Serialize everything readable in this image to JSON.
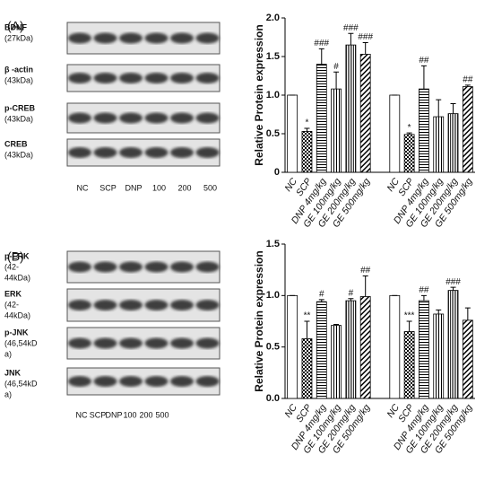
{
  "panels": [
    {
      "label": "(A)",
      "lanes": [
        "NC",
        "SCP",
        "DNP",
        "100",
        "200",
        "500"
      ],
      "blots": [
        {
          "name": "BDNF",
          "size": [
            "(27kDa)"
          ]
        },
        {
          "name": "β -actin",
          "size": [
            "(43kDa)"
          ]
        },
        {
          "name": "p-CREB",
          "size": [
            "(43kDa)"
          ]
        },
        {
          "name": "CREB",
          "size": [
            "(43kDa)"
          ]
        }
      ]
    },
    {
      "label": "(B)",
      "lanes": [
        "NC",
        "SCP",
        "DNP",
        "100",
        "200",
        "500"
      ],
      "blots": [
        {
          "name": "p-ERK",
          "size": [
            "(42-",
            "44kDa)"
          ]
        },
        {
          "name": "ERK",
          "size": [
            "(42-",
            "44kDa)"
          ]
        },
        {
          "name": "p-JNK",
          "size": [
            "(46,54kD",
            "a)"
          ]
        },
        {
          "name": "JNK",
          "size": [
            "(46,54kD",
            "a)"
          ]
        }
      ]
    }
  ],
  "chart_data": [
    {
      "type": "bar",
      "y_label": "Relative Protein expression",
      "categories": [
        "NC",
        "SCP",
        "DNP 4mg/kg",
        "GE 100mg/kg",
        "GE 200mg/kg",
        "GE 500mg/kg",
        null,
        "NC",
        "SCP",
        "DNP 4mg/kg",
        "GE 100mg/kg",
        "GE 200mg/kg",
        "GE 500mg/kg"
      ],
      "values": [
        1.0,
        0.53,
        1.4,
        1.08,
        1.65,
        1.53,
        null,
        1.0,
        0.49,
        1.08,
        0.72,
        0.76,
        1.11
      ],
      "errors": [
        0,
        0.04,
        0.2,
        0.22,
        0.15,
        0.15,
        null,
        0,
        0.02,
        0.3,
        0.22,
        0.13,
        0.02
      ],
      "annotations": [
        null,
        "*",
        "###",
        "#",
        "###",
        "###",
        null,
        null,
        "*",
        "##",
        null,
        null,
        "##"
      ],
      "ylim": [
        0,
        2.0
      ],
      "yticks": [
        0,
        {
          "value": 0.5,
          "label": "0.5"
        },
        {
          "value": 1.0,
          "label": "1.0"
        },
        {
          "value": 1.5,
          "label": "1.5"
        },
        {
          "value": 2.0,
          "label": "2.0"
        }
      ]
    },
    {
      "type": "bar",
      "y_label": "Relative Protein expression",
      "categories": [
        "NC",
        "SCP",
        "DNP 4mg/kg",
        "GE 100mg/kg",
        "GE 200mg/kg",
        "GE 500mg/kg",
        null,
        "NC",
        "SCP",
        "DNP 4mg/kg",
        "GE 100mg/kg",
        "GE 200mg/kg",
        "GE 500mg/kg"
      ],
      "values": [
        1.0,
        0.58,
        0.94,
        0.71,
        0.95,
        0.99,
        null,
        1.0,
        0.65,
        0.95,
        0.82,
        1.05,
        0.76
      ],
      "errors": [
        0,
        0.17,
        0.02,
        0.01,
        0.02,
        0.2,
        null,
        0,
        0.1,
        0.05,
        0.04,
        0.03,
        0.12
      ],
      "annotations": [
        null,
        "**",
        "#",
        null,
        "#",
        "##",
        null,
        null,
        "***",
        "##",
        null,
        "###",
        null
      ],
      "ylim": [
        0,
        1.5
      ],
      "yticks": [
        {
          "value": 0,
          "label": "0.0"
        },
        {
          "value": 0.5,
          "label": "0.5"
        },
        {
          "value": 1.0,
          "label": "1.0"
        },
        {
          "value": 1.5,
          "label": "1.5"
        }
      ]
    }
  ]
}
